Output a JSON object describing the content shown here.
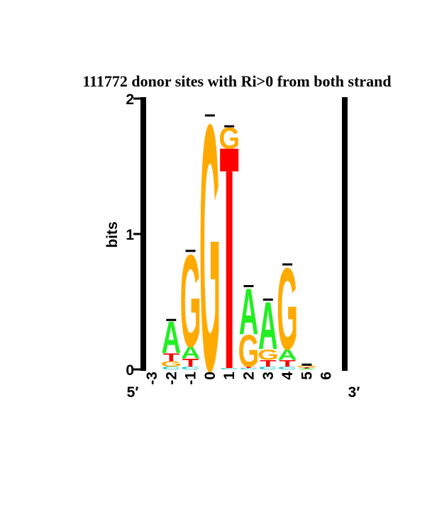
{
  "chart_data": {
    "type": "sequence-logo",
    "title": "111772 donor sites with Ri>0 from both strand",
    "ylabel": "bits",
    "ylim": [
      0,
      2
    ],
    "yticks": [
      "0",
      "1",
      "2"
    ],
    "prime5_label": "5′",
    "prime3_label": "3′",
    "colors": {
      "A": "#22ee22",
      "C": "#22cccc",
      "G": "#ffaa00",
      "T": "#ff0000"
    },
    "positions": [
      {
        "label": "-3",
        "height": 0.0,
        "error": 0.0,
        "letters": []
      },
      {
        "label": "-2",
        "height": 0.36,
        "error": 0.01,
        "letters": [
          {
            "base": "C",
            "bits": 0.02
          },
          {
            "base": "G",
            "bits": 0.04
          },
          {
            "base": "T",
            "bits": 0.06
          },
          {
            "base": "A",
            "bits": 0.24
          }
        ]
      },
      {
        "label": "-1",
        "height": 0.87,
        "error": 0.01,
        "letters": [
          {
            "base": "C",
            "bits": 0.02
          },
          {
            "base": "T",
            "bits": 0.06
          },
          {
            "base": "A",
            "bits": 0.09
          },
          {
            "base": "G",
            "bits": 0.7
          }
        ]
      },
      {
        "label": "0",
        "height": 1.87,
        "error": 0.01,
        "letters": [
          {
            "base": "G",
            "bits": 1.87
          }
        ]
      },
      {
        "label": "1",
        "height": 1.79,
        "error": 0.01,
        "letters": [
          {
            "base": "C",
            "bits": 0.01
          },
          {
            "base": "T",
            "bits": 1.62
          },
          {
            "base": "G",
            "bits": 0.16
          }
        ]
      },
      {
        "label": "2",
        "height": 0.61,
        "error": 0.01,
        "letters": [
          {
            "base": "C",
            "bits": 0.01
          },
          {
            "base": "T",
            "bits": 0.01
          },
          {
            "base": "G",
            "bits": 0.24
          },
          {
            "base": "A",
            "bits": 0.35
          }
        ]
      },
      {
        "label": "3",
        "height": 0.51,
        "error": 0.01,
        "letters": [
          {
            "base": "C",
            "bits": 0.02
          },
          {
            "base": "T",
            "bits": 0.05
          },
          {
            "base": "G",
            "bits": 0.08
          },
          {
            "base": "A",
            "bits": 0.36
          }
        ]
      },
      {
        "label": "4",
        "height": 0.77,
        "error": 0.01,
        "letters": [
          {
            "base": "C",
            "bits": 0.02
          },
          {
            "base": "T",
            "bits": 0.05
          },
          {
            "base": "A",
            "bits": 0.08
          },
          {
            "base": "G",
            "bits": 0.62
          }
        ]
      },
      {
        "label": "5",
        "height": 0.03,
        "error": 0.005,
        "letters": [
          {
            "base": "A",
            "bits": 0.008
          },
          {
            "base": "T",
            "bits": 0.008
          },
          {
            "base": "G",
            "bits": 0.012
          }
        ]
      },
      {
        "label": "6",
        "height": 0.0,
        "error": 0.0,
        "letters": []
      }
    ]
  }
}
